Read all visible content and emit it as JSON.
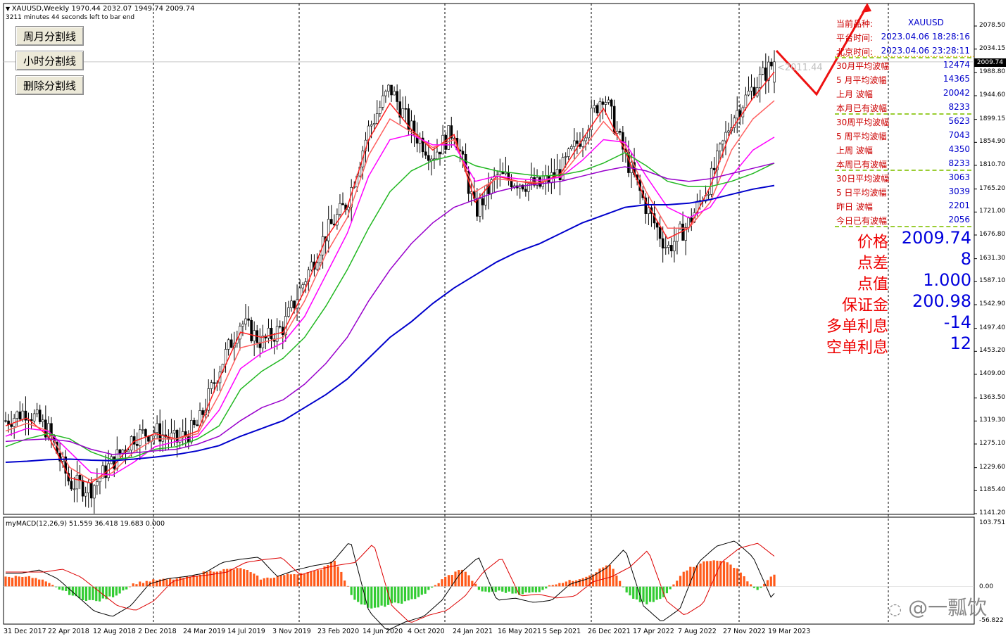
{
  "header": {
    "symbol_line": "XAUUSD,Weekly  1970.44 2032.07 1949.74 2009.74",
    "timer": "3211 minutes 44 seconds left to bar end"
  },
  "buttons": [
    {
      "label": "周月分割线"
    },
    {
      "label": "小时分割线"
    },
    {
      "label": "删除分割线"
    }
  ],
  "price_axis": {
    "ticks": [
      "2078.50",
      "2034.15",
      "1988.80",
      "1944.60",
      "1899.15",
      "1854.90",
      "1810.70",
      "1765.20",
      "1721.00",
      "1676.80",
      "1631.30",
      "1587.10",
      "1542.90",
      "1497.40",
      "1453.20",
      "1409.00",
      "1363.50",
      "1319.30",
      "1275.10",
      "1229.60",
      "1185.40",
      "1141.20"
    ],
    "current_price": "2009.74",
    "ask_label": "<2011.44"
  },
  "macd": {
    "label": "myMACD(12,26,9) 51.559 36.418 19.683 0.000",
    "ticks": [
      "103.751",
      "0.00",
      "-56.822"
    ]
  },
  "time_axis": [
    "31 Dec 2017",
    "22 Apr 2018",
    "12 Aug 2018",
    "2 Dec 2018",
    "24 Mar 2019",
    "14 Jul 2019",
    "3 Nov 2019",
    "23 Feb 2020",
    "14 Jun 2020",
    "4 Oct 2020",
    "24 Jan 2021",
    "16 May 2021",
    "5 Sep 2021",
    "26 Dec 2021",
    "17 Apr 2022",
    "7 Aug 2022",
    "27 Nov 2022",
    "19 Mar 2023"
  ],
  "info_panel": {
    "rows": [
      {
        "label": "当前品种:",
        "value": "XAUUSD"
      },
      {
        "label": "平台时间:",
        "value": "2023.04.06 18:28:16"
      },
      {
        "label": "北京时间:",
        "value": "2023.04.06 23:28:11"
      },
      {
        "label": "30月平均波幅",
        "value": "12474"
      },
      {
        "label": "5 月平均波幅",
        "value": "14365"
      },
      {
        "label": "上月    波幅",
        "value": "20042"
      },
      {
        "label": "本月已有波幅",
        "value": "8233"
      },
      {
        "label": "30周平均波幅",
        "value": "5623"
      },
      {
        "label": "5 周平均波幅",
        "value": "7043"
      },
      {
        "label": "上周    波幅",
        "value": "4350"
      },
      {
        "label": "本周已有波幅",
        "value": "8233"
      },
      {
        "label": "30日平均波幅",
        "value": "3063"
      },
      {
        "label": "5 日平均波幅",
        "value": "3039"
      },
      {
        "label": "昨日    波幅",
        "value": "2201"
      },
      {
        "label": "今日已有波幅",
        "value": "2056"
      }
    ],
    "big_rows": [
      {
        "label": "价格",
        "value": "2009.74"
      },
      {
        "label": "点差",
        "value": "8"
      },
      {
        "label": "点值",
        "value": "1.000"
      },
      {
        "label": "保证金",
        "value": "200.98"
      },
      {
        "label": "多单利息",
        "value": "-14"
      },
      {
        "label": "空单利息",
        "value": "12"
      }
    ]
  },
  "watermark": "@一瓢饮",
  "chart_data": {
    "type": "candlestick",
    "timeframe": "Weekly",
    "symbol": "XAUUSD",
    "ylim": [
      1141.2,
      2078.5
    ],
    "x": [
      "31 Dec 2017",
      "22 Apr 2018",
      "12 Aug 2018",
      "2 Dec 2018",
      "24 Mar 2019",
      "14 Jul 2019",
      "3 Nov 2019",
      "23 Feb 2020",
      "14 Jun 2020",
      "4 Oct 2020",
      "24 Jan 2021",
      "16 May 2021",
      "5 Sep 2021",
      "26 Dec 2021",
      "17 Apr 2022",
      "7 Aug 2022",
      "27 Nov 2022",
      "19 Mar 2023"
    ],
    "close_path": [
      1320,
      1340,
      1300,
      1200,
      1190,
      1240,
      1290,
      1300,
      1280,
      1310,
      1420,
      1510,
      1470,
      1500,
      1590,
      1680,
      1740,
      1880,
      1960,
      1880,
      1830,
      1880,
      1720,
      1790,
      1780,
      1770,
      1800,
      1870,
      1950,
      1830,
      1730,
      1650,
      1700,
      1780,
      1900,
      1960,
      2009.74
    ],
    "last_bar": {
      "open": 1970.44,
      "high": 2032.07,
      "low": 1949.74,
      "close": 2009.74
    },
    "moving_averages": [
      {
        "color": "#ff2020",
        "values": [
          1310,
          1325,
          1290,
          1210,
          1200,
          1230,
          1280,
          1295,
          1285,
          1300,
          1400,
          1490,
          1480,
          1490,
          1570,
          1670,
          1730,
          1860,
          1930,
          1880,
          1840,
          1870,
          1740,
          1790,
          1780,
          1775,
          1795,
          1860,
          1920,
          1840,
          1740,
          1670,
          1690,
          1770,
          1880,
          1940,
          1990
        ]
      },
      {
        "color": "#ff6060",
        "values": [
          1300,
          1315,
          1300,
          1230,
          1205,
          1220,
          1260,
          1285,
          1285,
          1295,
          1370,
          1460,
          1470,
          1480,
          1550,
          1640,
          1710,
          1830,
          1900,
          1875,
          1845,
          1860,
          1760,
          1785,
          1780,
          1778,
          1790,
          1840,
          1895,
          1850,
          1760,
          1690,
          1690,
          1740,
          1840,
          1900,
          1935
        ]
      },
      {
        "color": "#ff00ff",
        "values": [
          1290,
          1305,
          1300,
          1260,
          1220,
          1215,
          1240,
          1270,
          1280,
          1290,
          1340,
          1420,
          1450,
          1470,
          1520,
          1600,
          1680,
          1790,
          1860,
          1870,
          1850,
          1850,
          1780,
          1790,
          1785,
          1782,
          1788,
          1820,
          1860,
          1855,
          1790,
          1730,
          1710,
          1730,
          1790,
          1840,
          1865
        ]
      },
      {
        "color": "#22b822",
        "values": [
          1270,
          1285,
          1295,
          1285,
          1260,
          1245,
          1250,
          1265,
          1270,
          1285,
          1310,
          1380,
          1415,
          1440,
          1480,
          1540,
          1610,
          1690,
          1760,
          1800,
          1820,
          1830,
          1810,
          1800,
          1795,
          1790,
          1792,
          1800,
          1815,
          1835,
          1810,
          1780,
          1770,
          1770,
          1780,
          1795,
          1815
        ]
      },
      {
        "color": "#9900cc",
        "values": [
          1280,
          1283,
          1285,
          1280,
          1265,
          1255,
          1258,
          1262,
          1265,
          1275,
          1290,
          1320,
          1345,
          1360,
          1390,
          1430,
          1480,
          1550,
          1610,
          1660,
          1700,
          1730,
          1745,
          1760,
          1770,
          1775,
          1780,
          1790,
          1800,
          1808,
          1800,
          1785,
          1780,
          1785,
          1795,
          1805,
          1815
        ]
      },
      {
        "color": "#0000cc",
        "values": [
          1240,
          1242,
          1245,
          1246,
          1244,
          1243,
          1246,
          1250,
          1255,
          1262,
          1272,
          1290,
          1305,
          1320,
          1345,
          1370,
          1400,
          1440,
          1480,
          1510,
          1545,
          1575,
          1600,
          1625,
          1645,
          1660,
          1680,
          1700,
          1715,
          1730,
          1735,
          1735,
          1738,
          1745,
          1755,
          1765,
          1772
        ]
      }
    ],
    "macd": {
      "params": "12,26,9",
      "main": 51.559,
      "signal": 36.418,
      "hist": 19.683,
      "ylim": [
        -56.822,
        103.751
      ],
      "histogram_path": [
        15,
        18,
        10,
        -5,
        -20,
        -25,
        -15,
        5,
        10,
        12,
        15,
        25,
        28,
        30,
        12,
        18,
        22,
        25,
        45,
        -20,
        -38,
        -30,
        -25,
        -10,
        15,
        30,
        -10,
        -8,
        -12,
        -10,
        5,
        10,
        20,
        38,
        -15,
        -30,
        -18,
        25,
        40,
        45,
        30,
        -8,
        19.683
      ]
    }
  }
}
